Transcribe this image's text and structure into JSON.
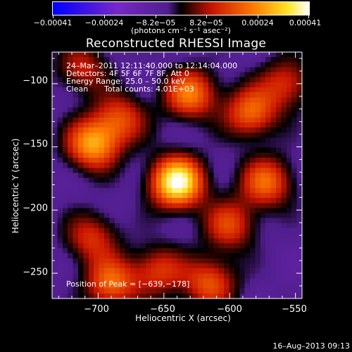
{
  "chart_data": {
    "type": "heatmap",
    "title": "Reconstructed RHESSI Image",
    "xlabel": "Heliocentric X (arcsec)",
    "ylabel": "Heliocentric Y (arcsec)",
    "xlim": [
      -735,
      -545
    ],
    "ylim": [
      -270,
      -75
    ],
    "x_ticks": [
      -700,
      -650,
      -600,
      -550
    ],
    "y_ticks": [
      -100,
      -150,
      -200,
      -250
    ],
    "x_tick_labels": [
      "−700",
      "−650",
      "−600",
      "−550"
    ],
    "y_tick_labels": [
      "−100",
      "−150",
      "−200",
      "−250"
    ],
    "colorbar": {
      "min": -0.00041,
      "max": 0.00041,
      "tick_values": [
        -0.00041,
        -0.00024,
        -8.2e-05,
        8.2e-05,
        0.00024,
        0.00041
      ],
      "tick_labels": [
        "−0.00041",
        "−0.00024",
        "−8.2e−05",
        "8.2e−05",
        "0.00024",
        "0.00041"
      ],
      "units": "(photons cm⁻² s⁻¹ asec⁻²)"
    },
    "peak": {
      "x": -639,
      "y": -178
    },
    "sources": [
      {
        "x": -640,
        "y": -178,
        "value": 1.0
      },
      {
        "x": -704,
        "y": -148,
        "value": 0.7
      },
      {
        "x": -683,
        "y": -128,
        "value": 0.45
      },
      {
        "x": -690,
        "y": -258,
        "value": 0.55
      },
      {
        "x": -705,
        "y": -222,
        "value": 0.4
      },
      {
        "x": -654,
        "y": -248,
        "value": 0.42
      },
      {
        "x": -615,
        "y": -258,
        "value": 0.5
      },
      {
        "x": -572,
        "y": -178,
        "value": 0.55
      },
      {
        "x": -600,
        "y": -212,
        "value": 0.45
      },
      {
        "x": -630,
        "y": -108,
        "value": 0.6
      },
      {
        "x": -584,
        "y": -123,
        "value": 0.55
      },
      {
        "x": -557,
        "y": -100,
        "value": 0.4
      },
      {
        "x": -712,
        "y": -88,
        "value": 0.35
      }
    ]
  },
  "annotations": {
    "time_range": "24–Mar–2011 12:11:40.000 to 12:14:04.000",
    "detectors": "Detectors: 4F 5F 6F 7F 8F, Att 0",
    "energy_range": "Energy Range: 25.0 – 50.0 keV",
    "algorithm": "Clean",
    "total_counts": "Total counts: 4.01E+03",
    "peak_position": "Position of Peak = [−639,−178]"
  },
  "footer": {
    "timestamp": "16–Aug–2013 09:13"
  }
}
